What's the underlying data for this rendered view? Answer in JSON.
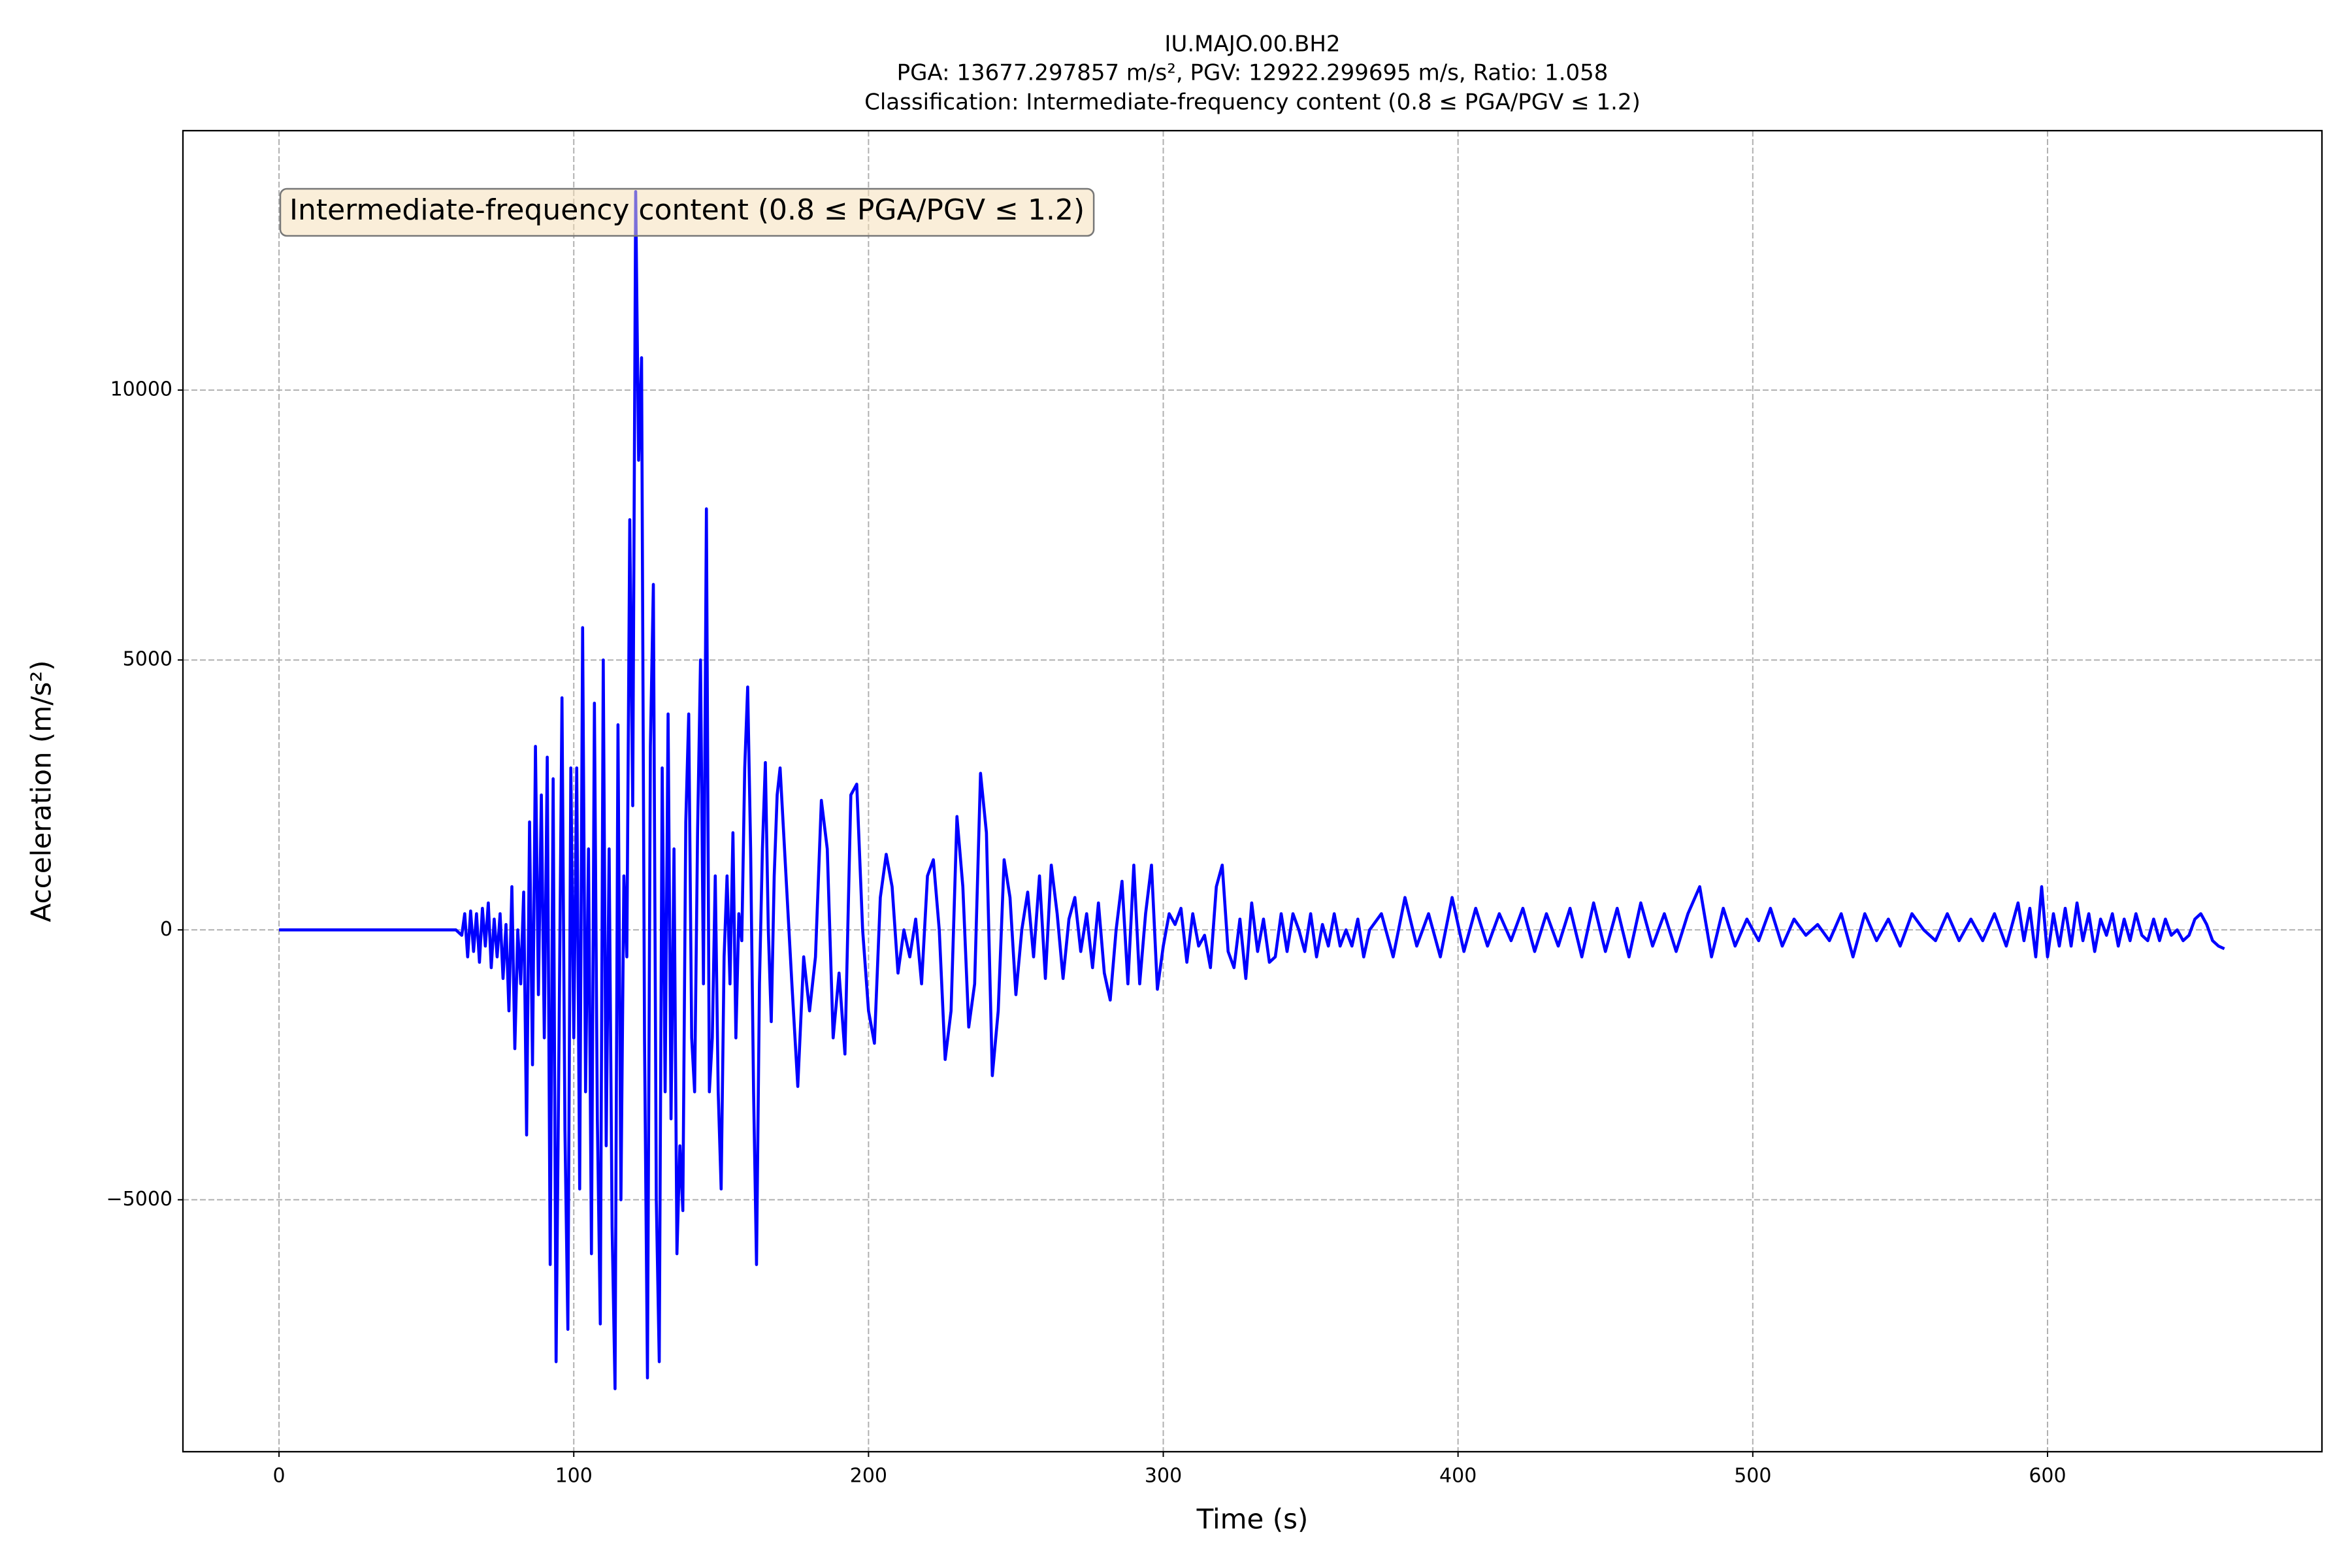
{
  "chart_data": {
    "type": "line",
    "title": [
      "IU.MAJO.00.BH2",
      "PGA: 13677.297857 m/s², PGV: 12922.299695 m/s, Ratio: 1.058",
      "Classification: Intermediate-frequency content (0.8 ≤ PGA/PGV ≤ 1.2)"
    ],
    "annotation": "Intermediate-frequency content (0.8 ≤ PGA/PGV ≤ 1.2)",
    "xlabel": "Time (s)",
    "ylabel": "Acceleration (m/s²)",
    "color": "#0000ff",
    "grid": true,
    "xlim": [
      -32.6,
      693.1
    ],
    "ylim": [
      -9667,
      14806
    ],
    "xticks": [
      0,
      100,
      200,
      300,
      400,
      500,
      600
    ],
    "yticks": [
      {
        "value": -5000,
        "label": "−5000"
      },
      0,
      5000,
      10000
    ],
    "x": [
      0,
      60,
      62,
      63,
      64,
      65,
      66,
      67,
      68,
      69,
      70,
      71,
      72,
      73,
      74,
      75,
      76,
      77,
      78,
      79,
      80,
      81,
      82,
      83,
      84,
      85,
      86,
      87,
      88,
      89,
      90,
      91,
      92,
      93,
      94,
      95,
      96,
      97,
      98,
      99,
      100,
      101,
      102,
      103,
      104,
      105,
      106,
      107,
      108,
      109,
      110,
      111,
      112,
      113,
      114,
      115,
      116,
      117,
      118,
      119,
      120,
      121,
      122,
      123,
      124,
      125,
      126,
      127,
      128,
      129,
      130,
      131,
      132,
      133,
      134,
      135,
      136,
      137,
      138,
      139,
      140,
      141,
      142,
      143,
      144,
      145,
      146,
      147,
      148,
      149,
      150,
      151,
      152,
      153,
      154,
      155,
      156,
      157,
      158,
      159,
      160,
      161,
      162,
      163,
      164,
      165,
      166,
      167,
      168,
      169,
      170,
      172,
      174,
      176,
      178,
      180,
      182,
      184,
      186,
      188,
      190,
      192,
      194,
      196,
      198,
      200,
      202,
      204,
      206,
      208,
      210,
      212,
      214,
      216,
      218,
      220,
      222,
      224,
      226,
      228,
      230,
      232,
      234,
      236,
      238,
      240,
      242,
      244,
      246,
      248,
      250,
      252,
      254,
      256,
      258,
      260,
      262,
      264,
      266,
      268,
      270,
      272,
      274,
      276,
      278,
      280,
      282,
      284,
      286,
      288,
      290,
      292,
      294,
      296,
      298,
      300,
      302,
      304,
      306,
      308,
      310,
      312,
      314,
      316,
      318,
      320,
      322,
      324,
      326,
      328,
      330,
      332,
      334,
      336,
      338,
      340,
      342,
      344,
      346,
      348,
      350,
      352,
      354,
      356,
      358,
      360,
      362,
      364,
      366,
      368,
      370,
      374,
      378,
      382,
      386,
      390,
      394,
      398,
      402,
      406,
      410,
      414,
      418,
      422,
      426,
      430,
      434,
      438,
      442,
      446,
      450,
      454,
      458,
      462,
      466,
      470,
      474,
      478,
      482,
      486,
      490,
      494,
      498,
      502,
      506,
      510,
      514,
      518,
      522,
      526,
      530,
      534,
      538,
      542,
      546,
      550,
      554,
      558,
      562,
      566,
      570,
      574,
      578,
      582,
      586,
      590,
      592,
      594,
      596,
      598,
      600,
      602,
      604,
      606,
      608,
      610,
      612,
      614,
      616,
      618,
      620,
      622,
      624,
      626,
      628,
      630,
      632,
      634,
      636,
      638,
      640,
      642,
      644,
      646,
      648,
      650,
      652,
      654,
      656,
      658,
      660
    ],
    "values": [
      0,
      0,
      -100,
      300,
      -500,
      350,
      -400,
      300,
      -600,
      400,
      -300,
      500,
      -700,
      200,
      -500,
      300,
      -900,
      100,
      -1500,
      800,
      -2200,
      0,
      -1000,
      700,
      -3800,
      2000,
      -2500,
      3400,
      -1200,
      2500,
      -2000,
      3200,
      -6200,
      2800,
      -8000,
      -2000,
      4300,
      -3700,
      -7400,
      3000,
      -2000,
      3000,
      -4800,
      5600,
      -3000,
      1500,
      -6000,
      4200,
      -3500,
      -7300,
      5000,
      -4000,
      1500,
      -5500,
      -8500,
      3800,
      -5000,
      1000,
      -500,
      7600,
      2300,
      13677.297857,
      8700,
      10600,
      -2000,
      -8300,
      3400,
      6400,
      -5000,
      -8000,
      3000,
      -3000,
      4000,
      -3500,
      1500,
      -6000,
      -4000,
      -5200,
      2000,
      4000,
      -2000,
      -3000,
      1800,
      5000,
      -1000,
      7800,
      -3000,
      -2000,
      1000,
      -3000,
      -4800,
      -500,
      1000,
      -1000,
      1800,
      -2000,
      300,
      -200,
      3000,
      4500,
      1500,
      -3000,
      -6200,
      -1000,
      1500,
      3100,
      0,
      -1700,
      1000,
      2500,
      3000,
      1000,
      -1000,
      -2900,
      -500,
      -1500,
      -500,
      2400,
      1500,
      -2000,
      -800,
      -2300,
      2500,
      2700,
      0,
      -1500,
      -2100,
      600,
      1400,
      800,
      -800,
      0,
      -500,
      200,
      -1000,
      1000,
      1300,
      0,
      -2400,
      -1500,
      2100,
      800,
      -1800,
      -1000,
      2900,
      1800,
      -2700,
      -1500,
      1300,
      600,
      -1200,
      0,
      700,
      -500,
      1000,
      -900,
      1200,
      300,
      -900,
      200,
      600,
      -400,
      300,
      -700,
      500,
      -800,
      -1300,
      0,
      900,
      -1000,
      1200,
      -1000,
      300,
      1200,
      -1100,
      -300,
      300,
      100,
      400,
      -600,
      300,
      -300,
      -100,
      -700,
      800,
      1200,
      -400,
      -700,
      200,
      -900,
      500,
      -400,
      200,
      -600,
      -500,
      300,
      -400,
      300,
      0,
      -400,
      300,
      -500,
      100,
      -300,
      300,
      -300,
      0,
      -300,
      200,
      -500,
      0,
      300,
      -500,
      600,
      -300,
      300,
      -500,
      600,
      -400,
      400,
      -300,
      300,
      -200,
      400,
      -400,
      300,
      -300,
      400,
      -500,
      500,
      -400,
      400,
      -500,
      500,
      -300,
      300,
      -400,
      300,
      800,
      -500,
      400,
      -300,
      200,
      -200,
      400,
      -300,
      200,
      -100,
      100,
      -200,
      300,
      -500,
      300,
      -200,
      200,
      -300,
      300,
      0,
      -200,
      300,
      -200,
      200,
      -200,
      300,
      -300,
      500,
      -200,
      400,
      -500,
      800,
      -500,
      300,
      -300,
      400,
      -300,
      500,
      -200,
      300,
      -400,
      200,
      -100,
      300,
      -300,
      200,
      -200,
      300,
      -100,
      -200,
      200,
      -200,
      200,
      -100,
      0,
      -200,
      -100,
      200,
      300,
      100,
      -200,
      -300,
      -350
    ]
  }
}
